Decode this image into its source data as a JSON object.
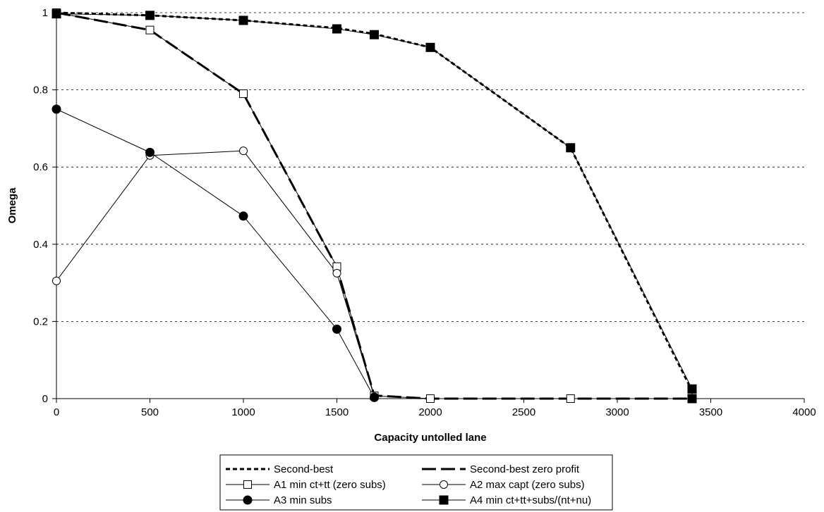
{
  "chart_data": {
    "type": "line",
    "title": "",
    "xlabel": "Capacity untolled lane",
    "ylabel": "Omega",
    "xlim": [
      0,
      4000
    ],
    "ylim": [
      0,
      1
    ],
    "x_ticks": [
      0,
      500,
      1000,
      1500,
      2000,
      2500,
      3000,
      3500,
      4000
    ],
    "y_ticks": [
      0,
      0.2,
      0.4,
      0.6,
      0.8,
      1
    ],
    "y_tick_labels": [
      "0",
      "0.2",
      "0.4",
      "0.6",
      "0.8",
      "1"
    ],
    "grid": "horizontal dotted",
    "legend_position": "bottom",
    "series": [
      {
        "name": "Second-best",
        "style": "short-dash",
        "marker": "none",
        "x": [
          0,
          500,
          1000,
          1500,
          1700,
          2000,
          2750,
          3400
        ],
        "y": [
          1.0,
          0.993,
          0.98,
          0.96,
          0.945,
          0.91,
          0.65,
          0.02
        ]
      },
      {
        "name": "Second-best zero profit",
        "style": "long-dash",
        "marker": "none",
        "x": [
          0,
          500,
          1000,
          1500,
          1700,
          2000,
          2750,
          3400
        ],
        "y": [
          1.0,
          0.955,
          0.79,
          0.34,
          0.008,
          0.0,
          0.0,
          0.0
        ]
      },
      {
        "name": "A1 min ct+tt (zero subs)",
        "style": "solid",
        "marker": "open-square",
        "x": [
          0,
          500,
          1000,
          1500,
          1700,
          2000,
          2750,
          3400
        ],
        "y": [
          1.0,
          0.955,
          0.79,
          0.342,
          0.007,
          0.0,
          0.0,
          0.0
        ]
      },
      {
        "name": "A2 max capt (zero subs)",
        "style": "solid",
        "marker": "open-circle",
        "x": [
          0,
          500,
          1000,
          1500,
          1700
        ],
        "y": [
          0.305,
          0.63,
          0.642,
          0.325,
          0.005
        ]
      },
      {
        "name": "A3 min subs",
        "style": "solid",
        "marker": "filled-circle",
        "x": [
          0,
          500,
          1000,
          1500,
          1700
        ],
        "y": [
          0.75,
          0.638,
          0.473,
          0.18,
          0.003
        ]
      },
      {
        "name": "A4 min ct+tt+subs/(nt+nu)",
        "style": "solid",
        "marker": "filled-square",
        "x": [
          0,
          500,
          1000,
          1500,
          1700,
          2000,
          2750,
          3400,
          3400
        ],
        "y": [
          0.997,
          0.993,
          0.98,
          0.958,
          0.943,
          0.91,
          0.65,
          0.025,
          0.0
        ]
      }
    ]
  }
}
